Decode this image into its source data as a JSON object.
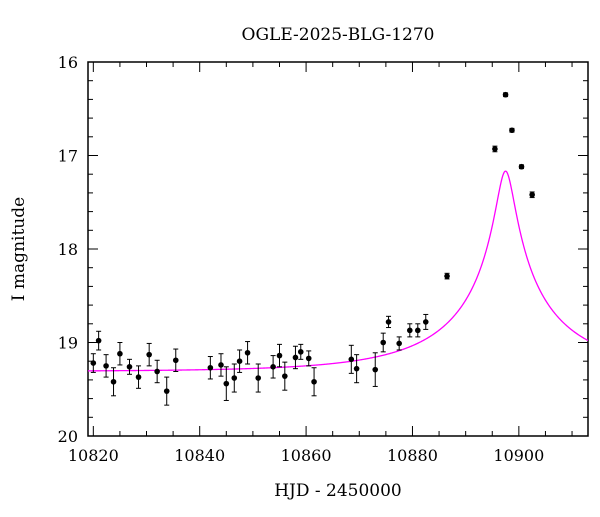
{
  "chart_data": {
    "type": "scatter",
    "title": "OGLE-2025-BLG-1270",
    "xlabel": "HJD - 2450000",
    "ylabel": "I magnitude",
    "xlim": [
      10819,
      10913
    ],
    "ylim": [
      16,
      20
    ],
    "y_inverted": true,
    "x_ticks": [
      10820,
      10840,
      10860,
      10880,
      10900
    ],
    "y_ticks": [
      16,
      17,
      18,
      19,
      20
    ],
    "grid": false,
    "series": [
      {
        "kind": "points_with_errorbars",
        "color": "#000000",
        "points": [
          {
            "x": 10820.0,
            "y": 19.22,
            "err": 0.1
          },
          {
            "x": 10821.0,
            "y": 18.98,
            "err": 0.1
          },
          {
            "x": 10822.4,
            "y": 19.25,
            "err": 0.12
          },
          {
            "x": 10823.8,
            "y": 19.42,
            "err": 0.15
          },
          {
            "x": 10825.0,
            "y": 19.12,
            "err": 0.12
          },
          {
            "x": 10826.8,
            "y": 19.26,
            "err": 0.08
          },
          {
            "x": 10828.5,
            "y": 19.37,
            "err": 0.12
          },
          {
            "x": 10830.5,
            "y": 19.13,
            "err": 0.12
          },
          {
            "x": 10832.0,
            "y": 19.31,
            "err": 0.12
          },
          {
            "x": 10833.8,
            "y": 19.52,
            "err": 0.15
          },
          {
            "x": 10835.5,
            "y": 19.19,
            "err": 0.12
          },
          {
            "x": 10842.0,
            "y": 19.27,
            "err": 0.12
          },
          {
            "x": 10844.0,
            "y": 19.24,
            "err": 0.12
          },
          {
            "x": 10845.0,
            "y": 19.44,
            "err": 0.18
          },
          {
            "x": 10846.5,
            "y": 19.38,
            "err": 0.15
          },
          {
            "x": 10847.5,
            "y": 19.2,
            "err": 0.12
          },
          {
            "x": 10849.0,
            "y": 19.11,
            "err": 0.12
          },
          {
            "x": 10851.0,
            "y": 19.38,
            "err": 0.15
          },
          {
            "x": 10853.8,
            "y": 19.26,
            "err": 0.12
          },
          {
            "x": 10855.0,
            "y": 19.14,
            "err": 0.12
          },
          {
            "x": 10856.0,
            "y": 19.36,
            "err": 0.15
          },
          {
            "x": 10858.0,
            "y": 19.16,
            "err": 0.12
          },
          {
            "x": 10859.0,
            "y": 19.1,
            "err": 0.08
          },
          {
            "x": 10860.5,
            "y": 19.17,
            "err": 0.08
          },
          {
            "x": 10861.5,
            "y": 19.42,
            "err": 0.15
          },
          {
            "x": 10868.5,
            "y": 19.18,
            "err": 0.15
          },
          {
            "x": 10869.5,
            "y": 19.28,
            "err": 0.15
          },
          {
            "x": 10873.0,
            "y": 19.29,
            "err": 0.18
          },
          {
            "x": 10874.5,
            "y": 19.0,
            "err": 0.1
          },
          {
            "x": 10875.5,
            "y": 18.78,
            "err": 0.06
          },
          {
            "x": 10877.5,
            "y": 19.01,
            "err": 0.07
          },
          {
            "x": 10879.5,
            "y": 18.87,
            "err": 0.07
          },
          {
            "x": 10881.0,
            "y": 18.87,
            "err": 0.07
          },
          {
            "x": 10882.5,
            "y": 18.78,
            "err": 0.08
          },
          {
            "x": 10886.5,
            "y": 18.29,
            "err": 0.03
          },
          {
            "x": 10895.5,
            "y": 16.93,
            "err": 0.03
          },
          {
            "x": 10897.5,
            "y": 16.35,
            "err": 0.02
          },
          {
            "x": 10898.7,
            "y": 16.73,
            "err": 0.02
          },
          {
            "x": 10900.5,
            "y": 17.12,
            "err": 0.02
          },
          {
            "x": 10902.5,
            "y": 17.42,
            "err": 0.03
          }
        ]
      },
      {
        "kind": "model_curve",
        "color": "#ff00ff",
        "model": "point-lens",
        "t0": 10897.5,
        "tE": 25,
        "u0": 0.065,
        "baseline_mag": 19.31,
        "blend_fraction": 0.43
      }
    ]
  }
}
